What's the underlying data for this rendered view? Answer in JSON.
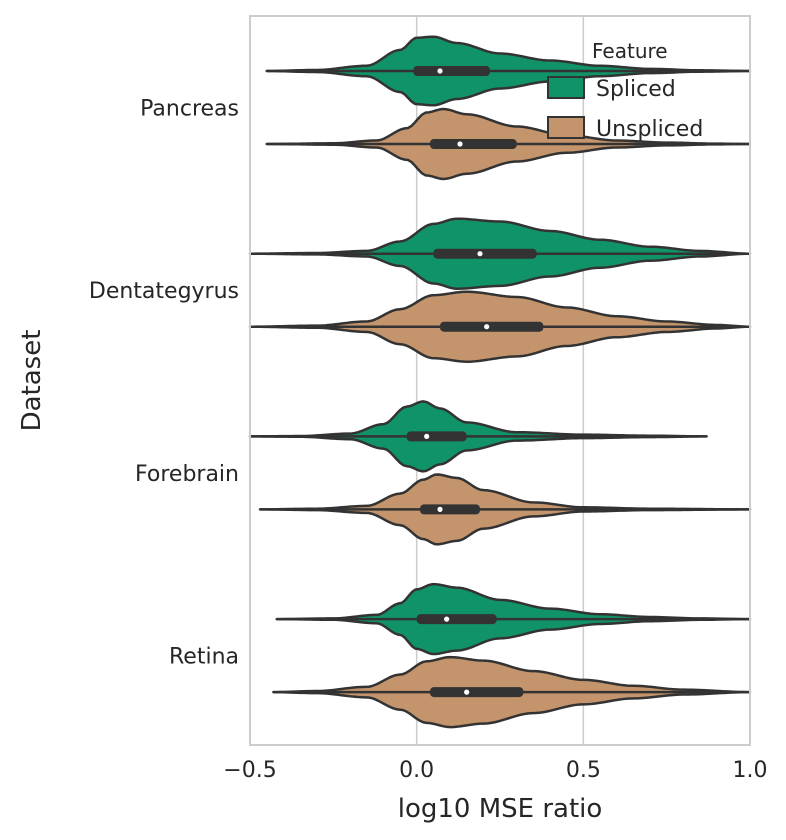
{
  "chart_data": {
    "type": "violin",
    "orientation": "horizontal",
    "xlabel": "log10 MSE ratio",
    "ylabel": "Dataset",
    "xlim": [
      -0.5,
      1.0
    ],
    "xticks": [
      -0.5,
      0.0,
      0.5,
      1.0
    ],
    "xtick_labels": [
      "−0.5",
      "0.0",
      "0.5",
      "1.0"
    ],
    "grid": "vertical",
    "categories": [
      "Pancreas",
      "Dentategyrus",
      "Forebrain",
      "Retina"
    ],
    "legend": {
      "title": "Feature",
      "placement": "upper-right",
      "entries": [
        "Spliced",
        "Unspliced"
      ]
    },
    "series": [
      {
        "name": "Spliced",
        "color": "#11936a",
        "violins": [
          {
            "category": "Pancreas",
            "whisker": [
              -0.45,
              1.0
            ],
            "q1": -0.01,
            "median": 0.07,
            "q3": 0.22,
            "profile": [
              [
                -0.45,
                0
              ],
              [
                -0.3,
                0.03
              ],
              [
                -0.15,
                0.15
              ],
              [
                -0.05,
                0.6
              ],
              [
                0.0,
                0.95
              ],
              [
                0.05,
                0.98
              ],
              [
                0.12,
                0.8
              ],
              [
                0.25,
                0.5
              ],
              [
                0.4,
                0.3
              ],
              [
                0.55,
                0.15
              ],
              [
                0.7,
                0.06
              ],
              [
                0.85,
                0.02
              ],
              [
                1.0,
                0
              ]
            ]
          },
          {
            "category": "Dentategyrus",
            "whisker": [
              -0.5,
              1.0
            ],
            "q1": 0.05,
            "median": 0.19,
            "q3": 0.36,
            "profile": [
              [
                -0.5,
                0
              ],
              [
                -0.3,
                0.02
              ],
              [
                -0.15,
                0.08
              ],
              [
                -0.05,
                0.35
              ],
              [
                0.05,
                0.85
              ],
              [
                0.12,
                1.0
              ],
              [
                0.25,
                0.92
              ],
              [
                0.4,
                0.65
              ],
              [
                0.55,
                0.4
              ],
              [
                0.7,
                0.2
              ],
              [
                0.85,
                0.08
              ],
              [
                1.0,
                0
              ]
            ]
          },
          {
            "category": "Forebrain",
            "whisker": [
              -0.5,
              0.87
            ],
            "q1": -0.03,
            "median": 0.03,
            "q3": 0.15,
            "profile": [
              [
                -0.5,
                0
              ],
              [
                -0.35,
                0.01
              ],
              [
                -0.2,
                0.08
              ],
              [
                -0.1,
                0.35
              ],
              [
                -0.03,
                0.85
              ],
              [
                0.02,
                1.0
              ],
              [
                0.07,
                0.8
              ],
              [
                0.15,
                0.4
              ],
              [
                0.3,
                0.12
              ],
              [
                0.5,
                0.05
              ],
              [
                0.7,
                0.02
              ],
              [
                0.87,
                0
              ]
            ]
          },
          {
            "category": "Retina",
            "whisker": [
              -0.42,
              1.0
            ],
            "q1": 0.0,
            "median": 0.09,
            "q3": 0.24,
            "profile": [
              [
                -0.42,
                0
              ],
              [
                -0.25,
                0.02
              ],
              [
                -0.12,
                0.12
              ],
              [
                -0.05,
                0.45
              ],
              [
                0.0,
                0.85
              ],
              [
                0.05,
                1.0
              ],
              [
                0.12,
                0.9
              ],
              [
                0.25,
                0.55
              ],
              [
                0.4,
                0.3
              ],
              [
                0.55,
                0.14
              ],
              [
                0.7,
                0.06
              ],
              [
                0.85,
                0.02
              ],
              [
                1.0,
                0
              ]
            ]
          }
        ]
      },
      {
        "name": "Unspliced",
        "color": "#c4956c",
        "violins": [
          {
            "category": "Pancreas",
            "whisker": [
              -0.45,
              1.0
            ],
            "q1": 0.04,
            "median": 0.13,
            "q3": 0.3,
            "profile": [
              [
                -0.45,
                0
              ],
              [
                -0.25,
                0.02
              ],
              [
                -0.12,
                0.1
              ],
              [
                -0.03,
                0.45
              ],
              [
                0.03,
                0.9
              ],
              [
                0.08,
                1.0
              ],
              [
                0.15,
                0.85
              ],
              [
                0.3,
                0.5
              ],
              [
                0.45,
                0.25
              ],
              [
                0.6,
                0.1
              ],
              [
                0.75,
                0.04
              ],
              [
                0.9,
                0.01
              ],
              [
                1.0,
                0
              ]
            ]
          },
          {
            "category": "Dentategyrus",
            "whisker": [
              -0.5,
              1.0
            ],
            "q1": 0.07,
            "median": 0.21,
            "q3": 0.38,
            "profile": [
              [
                -0.5,
                0
              ],
              [
                -0.3,
                0.03
              ],
              [
                -0.15,
                0.15
              ],
              [
                -0.05,
                0.5
              ],
              [
                0.05,
                0.9
              ],
              [
                0.15,
                1.0
              ],
              [
                0.3,
                0.85
              ],
              [
                0.45,
                0.55
              ],
              [
                0.6,
                0.3
              ],
              [
                0.75,
                0.15
              ],
              [
                0.9,
                0.05
              ],
              [
                1.0,
                0
              ]
            ]
          },
          {
            "category": "Forebrain",
            "whisker": [
              -0.47,
              1.0
            ],
            "q1": 0.01,
            "median": 0.07,
            "q3": 0.19,
            "profile": [
              [
                -0.47,
                0
              ],
              [
                -0.3,
                0.02
              ],
              [
                -0.15,
                0.1
              ],
              [
                -0.05,
                0.45
              ],
              [
                0.02,
                0.85
              ],
              [
                0.06,
                1.0
              ],
              [
                0.12,
                0.9
              ],
              [
                0.2,
                0.55
              ],
              [
                0.35,
                0.2
              ],
              [
                0.5,
                0.06
              ],
              [
                0.7,
                0.02
              ],
              [
                1.0,
                0
              ]
            ]
          },
          {
            "category": "Retina",
            "whisker": [
              -0.43,
              1.0
            ],
            "q1": 0.04,
            "median": 0.15,
            "q3": 0.32,
            "profile": [
              [
                -0.43,
                0
              ],
              [
                -0.3,
                0.03
              ],
              [
                -0.15,
                0.15
              ],
              [
                -0.05,
                0.5
              ],
              [
                0.03,
                0.88
              ],
              [
                0.1,
                1.0
              ],
              [
                0.2,
                0.9
              ],
              [
                0.35,
                0.6
              ],
              [
                0.5,
                0.35
              ],
              [
                0.65,
                0.18
              ],
              [
                0.8,
                0.07
              ],
              [
                1.0,
                0
              ]
            ]
          }
        ]
      }
    ]
  }
}
